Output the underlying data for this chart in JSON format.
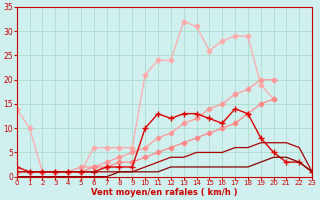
{
  "x": [
    0,
    1,
    2,
    3,
    4,
    5,
    6,
    7,
    8,
    9,
    10,
    11,
    12,
    13,
    14,
    15,
    16,
    17,
    18,
    19,
    20,
    21,
    22,
    23
  ],
  "series": [
    {
      "color": "#ffaaaa",
      "linewidth": 0.9,
      "marker": "D",
      "markersize": 2.5,
      "y": [
        14,
        10,
        1,
        1,
        1,
        1,
        6,
        6,
        6,
        6,
        21,
        24,
        24,
        32,
        31,
        26,
        28,
        29,
        29,
        19,
        16,
        null,
        null,
        null
      ]
    },
    {
      "color": "#ff9999",
      "linewidth": 0.9,
      "marker": "D",
      "markersize": 2.5,
      "y": [
        1,
        1,
        1,
        1,
        1,
        2,
        2,
        3,
        4,
        5,
        6,
        8,
        9,
        11,
        12,
        14,
        15,
        17,
        18,
        20,
        20,
        null,
        null,
        null
      ]
    },
    {
      "color": "#ff8888",
      "linewidth": 0.9,
      "marker": "D",
      "markersize": 2.5,
      "y": [
        1,
        1,
        1,
        1,
        1,
        1,
        2,
        2,
        3,
        3,
        4,
        5,
        6,
        7,
        8,
        9,
        10,
        11,
        13,
        15,
        16,
        null,
        null,
        null
      ]
    },
    {
      "color": "#dd0000",
      "linewidth": 1.0,
      "marker": "+",
      "markersize": 4,
      "y": [
        2,
        1,
        1,
        1,
        1,
        1,
        1,
        2,
        2,
        2,
        10,
        13,
        12,
        13,
        13,
        12,
        11,
        14,
        13,
        8,
        5,
        3,
        3,
        1
      ]
    },
    {
      "color": "#aa0000",
      "linewidth": 0.9,
      "marker": null,
      "markersize": 0,
      "y": [
        1,
        1,
        1,
        1,
        1,
        1,
        1,
        1,
        1,
        1,
        2,
        3,
        4,
        4,
        5,
        5,
        5,
        6,
        6,
        7,
        7,
        7,
        6,
        1
      ]
    },
    {
      "color": "#880000",
      "linewidth": 0.9,
      "marker": null,
      "markersize": 0,
      "y": [
        0,
        0,
        0,
        0,
        0,
        0,
        0,
        0,
        1,
        1,
        1,
        1,
        2,
        2,
        2,
        2,
        2,
        2,
        2,
        3,
        4,
        4,
        3,
        1
      ]
    }
  ],
  "xlim": [
    0,
    23
  ],
  "ylim": [
    0,
    35
  ],
  "yticks": [
    0,
    5,
    10,
    15,
    20,
    25,
    30,
    35
  ],
  "xticks": [
    0,
    1,
    2,
    3,
    4,
    5,
    6,
    7,
    8,
    9,
    10,
    11,
    12,
    13,
    14,
    15,
    16,
    17,
    18,
    19,
    20,
    21,
    22,
    23
  ],
  "xlabel": "Vent moyen/en rafales ( km/h )",
  "bg_color": "#cff0ee",
  "grid_color": "#aaddcc",
  "tick_color": "#cc0000",
  "label_color": "#cc0000"
}
